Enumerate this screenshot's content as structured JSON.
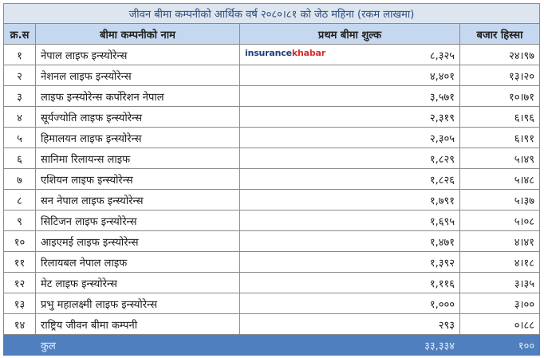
{
  "table": {
    "title": "जीवन बीमा कम्पनीको आर्थिक वर्ष २०८०।८१ को जेठ महिना (रकम लाखमा)",
    "header": [
      "क्र.स",
      "बीमा कम्पनीको नाम",
      "प्रथम बीमा शुल्क",
      "बजार हिस्सा"
    ],
    "rows": [
      [
        "१",
        "नेपाल लाइफ इन्स्योरेन्स",
        "८,३२५",
        "२४।९७"
      ],
      [
        "२",
        "नेशनल लाइफ इन्स्योरेन्स",
        "४,४०१",
        "१३।२०"
      ],
      [
        "३",
        "लाइफ इन्स्योरेन्स कर्पोरेशन नेपाल",
        "३,५७१",
        "१०।७१"
      ],
      [
        "४",
        "सूर्यज्योति लाइफ इन्स्योरेन्स",
        "२,३१९",
        "६।९६"
      ],
      [
        "५",
        "हिमालयन लाइफ इन्स्योरेन्स",
        "२,३०५",
        "६।९१"
      ],
      [
        "६",
        "सानिमा रिलायन्स लाइफ",
        "१,८२९",
        "५।४९"
      ],
      [
        "७",
        "एशियन लाइफ इन्स्योरेन्स",
        "१,८२६",
        "५।४८"
      ],
      [
        "८",
        "सन नेपाल लाइफ इन्स्योरेन्स",
        "१,७९१",
        "५।३७"
      ],
      [
        "९",
        "सिटिजन लाइफ इन्स्योरेन्स",
        "१,६९५",
        "५।०८"
      ],
      [
        "१०",
        "आइएमई लाइफ इन्स्योरेन्स",
        "१,४७१",
        "४।४१"
      ],
      [
        "११",
        "रिलायबल नेपाल लाइफ",
        "१,३९२",
        "४।१८"
      ],
      [
        "१२",
        "मेट लाइफ इन्स्योरेन्स",
        "१,११६",
        "३।३५"
      ],
      [
        "१३",
        "प्रभु महालक्ष्मी लाइफ इन्स्योरेन्स",
        "१,०००",
        "३।००"
      ],
      [
        "१४",
        "राष्ट्रिय जीवन बीमा कम्पनी",
        "२९३",
        "०।८८"
      ]
    ],
    "total": [
      "कुल",
      "३३,३३४",
      "१००"
    ]
  },
  "logo": {
    "brand": "insurance",
    "suffix": "khabar"
  }
}
